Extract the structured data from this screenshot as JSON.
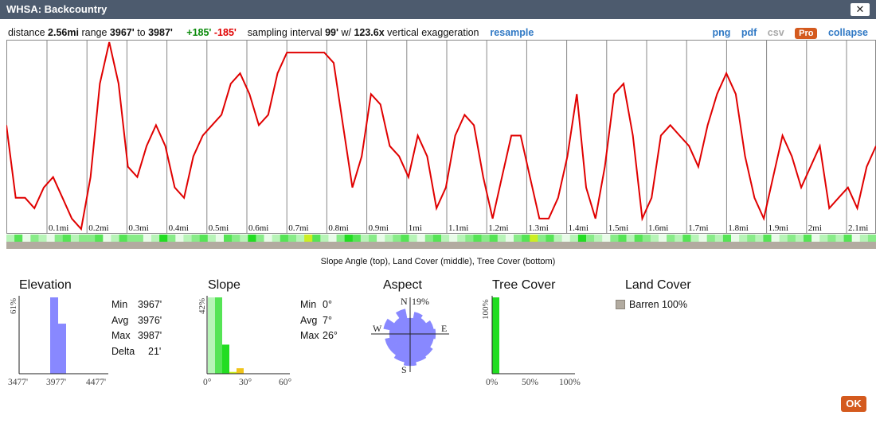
{
  "window": {
    "title": "WHSA: Backcountry",
    "close_label": "✕"
  },
  "infobar": {
    "distance_label": "distance",
    "distance": "2.56mi",
    "range_label": "range",
    "range_min": "3967'",
    "range_to": "to",
    "range_max": "3987'",
    "gain": "+185'",
    "loss": "-185'",
    "interval_label": "sampling interval",
    "interval": "99'",
    "with_label": "w/",
    "exaggeration": "123.6x",
    "exaggeration_label": "vertical exaggeration",
    "resample": "resample"
  },
  "tools": {
    "png": "png",
    "pdf": "pdf",
    "csv": "csv",
    "pro": "Pro",
    "collapse": "collapse"
  },
  "profile": {
    "line_color": "#e00000",
    "mile_labels": [
      "0.1mi",
      "0.2mi",
      "0.3mi",
      "0.4mi",
      "0.5mi",
      "0.6mi",
      "0.7mi",
      "0.8mi",
      "0.9mi",
      "1mi",
      "1.1mi",
      "1.2mi",
      "1.3mi",
      "1.4mi",
      "1.5mi",
      "1.6mi",
      "1.7mi",
      "1.8mi",
      "1.9mi",
      "2mi",
      "2.1mi"
    ],
    "elevation_ft": [
      3979,
      3972,
      3972,
      3971,
      3973,
      3974,
      3972,
      3970,
      3969,
      3974,
      3983,
      3987,
      3983,
      3975,
      3974,
      3977,
      3979,
      3977,
      3973,
      3972,
      3976,
      3978,
      3979,
      3980,
      3983,
      3984,
      3982,
      3979,
      3980,
      3984,
      3986,
      3986,
      3986,
      3986,
      3986,
      3985,
      3979,
      3973,
      3976,
      3982,
      3981,
      3977,
      3976,
      3974,
      3978,
      3976,
      3971,
      3973,
      3978,
      3980,
      3979,
      3974,
      3970,
      3974,
      3978,
      3978,
      3974,
      3970,
      3970,
      3972,
      3976,
      3982,
      3973,
      3970,
      3975,
      3982,
      3983,
      3978,
      3970,
      3972,
      3978,
      3979,
      3978,
      3977,
      3975,
      3979,
      3982,
      3984,
      3982,
      3976,
      3972,
      3970,
      3974,
      3978,
      3976,
      3973,
      3975,
      3977,
      3971,
      3972,
      3973,
      3971,
      3975,
      3977
    ],
    "slope_cells": [
      "#b7f4b7",
      "#55e455",
      "#e8fbe8",
      "#88ec88",
      "#b7f4b7",
      "#e8fbe8",
      "#88ec88",
      "#55e455",
      "#b7f4b7",
      "#88ec88",
      "#88ec88",
      "#55e455",
      "#e8fbe8",
      "#b7f4b7",
      "#55e455",
      "#88ec88",
      "#88ec88",
      "#e8fbe8",
      "#b7f4b7",
      "#22dd22",
      "#88ec88",
      "#e8fbe8",
      "#b7f4b7",
      "#88ec88",
      "#55e455",
      "#b7f4b7",
      "#e8fbe8",
      "#55e455",
      "#88ec88",
      "#b7f4b7",
      "#22dd22",
      "#88ec88",
      "#e8fbe8",
      "#b7f4b7",
      "#55e455",
      "#88ec88",
      "#b7f4b7",
      "#ccee22",
      "#55e455",
      "#b7f4b7",
      "#e8fbe8",
      "#88ec88",
      "#22dd22",
      "#55e455",
      "#b7f4b7",
      "#88ec88",
      "#e8fbe8",
      "#b7f4b7",
      "#88ec88",
      "#55e455",
      "#b7f4b7",
      "#e8fbe8",
      "#88ec88",
      "#55e455",
      "#b7f4b7",
      "#e8fbe8",
      "#b7f4b7",
      "#88ec88",
      "#55e455",
      "#88ec88",
      "#55e455",
      "#b7f4b7",
      "#e8fbe8",
      "#88ec88",
      "#55e455",
      "#ccee22",
      "#88ec88",
      "#55e455",
      "#b7f4b7",
      "#e8fbe8",
      "#b7f4b7",
      "#22dd22",
      "#88ec88",
      "#b7f4b7",
      "#e8fbe8",
      "#88ec88",
      "#55e455",
      "#b7f4b7",
      "#55e455",
      "#88ec88",
      "#b7f4b7",
      "#e8fbe8",
      "#88ec88",
      "#b7f4b7",
      "#55e455",
      "#b7f4b7",
      "#e8fbe8",
      "#88ec88",
      "#b7f4b7",
      "#55e455",
      "#e8fbe8",
      "#b7f4b7",
      "#88ec88",
      "#b7f4b7",
      "#55e455",
      "#e8fbe8",
      "#b7f4b7",
      "#88ec88",
      "#b7f4b7",
      "#55e455",
      "#e8fbe8",
      "#b7f4b7",
      "#88ec88",
      "#b7f4b7",
      "#55e455",
      "#e8fbe8",
      "#b7f4b7",
      "#88ec88"
    ],
    "landcover_color": "#b2aba0",
    "caption": "Slope Angle (top), Land Cover (middle), Tree Cover (bottom)"
  },
  "elevation": {
    "title": "Elevation",
    "y_label": "61%",
    "x_ticks": [
      "3477'",
      "3977'",
      "4477'"
    ],
    "bar_color": "#8888ff",
    "bars_pct": [
      61,
      40
    ],
    "stats": [
      {
        "key": "Min",
        "value": "3967'"
      },
      {
        "key": "Avg",
        "value": "3976'"
      },
      {
        "key": "Max",
        "value": "3987'"
      },
      {
        "key": "Delta",
        "value": "21'"
      }
    ]
  },
  "slope": {
    "title": "Slope",
    "y_label": "42%",
    "x_ticks": [
      "0°",
      "30°",
      "60°"
    ],
    "bars": [
      {
        "pct": 42,
        "color": "#b7f4b7"
      },
      {
        "pct": 42,
        "color": "#55e455"
      },
      {
        "pct": 16,
        "color": "#22dd22"
      },
      {
        "pct": 1,
        "color": "#ccee22"
      },
      {
        "pct": 3,
        "color": "#f0c419"
      }
    ],
    "stats": [
      {
        "key": "Min",
        "value": "0°"
      },
      {
        "key": "Avg",
        "value": "7°"
      },
      {
        "key": "Max",
        "value": "26°"
      }
    ]
  },
  "aspect": {
    "title": "Aspect",
    "label_n": "N",
    "label_e": "E",
    "label_s": "S",
    "label_w": "W",
    "max_label": "19%",
    "fill_color": "#8888ff",
    "radii": [
      0.5,
      0.7,
      0.6,
      0.75,
      0.8,
      0.75,
      0.85,
      0.9,
      1.0,
      0.9,
      0.8,
      0.8,
      0.65,
      0.85,
      0.6,
      0.8
    ]
  },
  "tree_cover": {
    "title": "Tree Cover",
    "y_label": "100%",
    "x_ticks": [
      "0%",
      "50%",
      "100%"
    ],
    "bar_color": "#22dd22",
    "bar_pct": 100
  },
  "land_cover": {
    "title": "Land Cover",
    "items": [
      {
        "label": "Barren 100%",
        "color": "#b2aba0"
      }
    ]
  },
  "ok_label": "OK"
}
